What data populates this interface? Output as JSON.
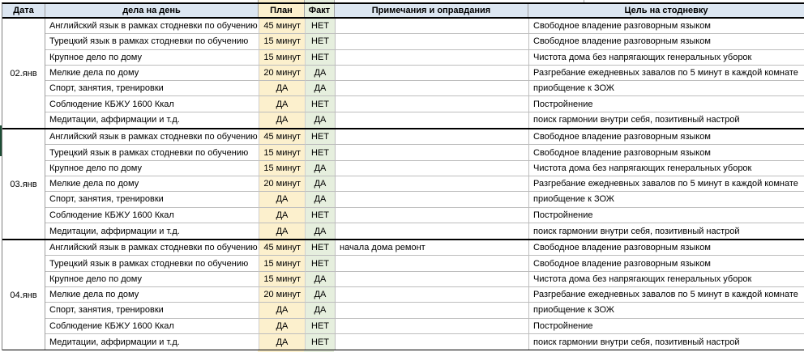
{
  "colors": {
    "header_bg": "#dce6f1",
    "plan_bg": "#fcf0cd",
    "fact_bg": "#e6efde",
    "grid_line": "#bdbdbd",
    "thick_border": "#000000",
    "edge_tick": "#1d4d35"
  },
  "table": {
    "columns": [
      {
        "key": "date",
        "label": "Дата"
      },
      {
        "key": "tasks",
        "label": "дела на день"
      },
      {
        "key": "plan",
        "label": "План"
      },
      {
        "key": "fact",
        "label": "Факт"
      },
      {
        "key": "notes",
        "label": "Примечания и оправдания"
      },
      {
        "key": "goal",
        "label": "Цель на стодневку"
      }
    ],
    "groups": [
      {
        "date": "02.янв",
        "rows": [
          {
            "task": "Английский язык в рамках стодневки по обучению",
            "plan": "45 минут",
            "fact": "НЕТ",
            "note": "",
            "goal": "Свободное владение разговорным языком"
          },
          {
            "task": "Турецкий язык в рамках стодневки по обучению",
            "plan": "15 минут",
            "fact": "НЕТ",
            "note": "",
            "goal": "Свободное владение разговорным языком"
          },
          {
            "task": "Крупное дело по дому",
            "plan": "15 минут",
            "fact": "НЕТ",
            "note": "",
            "goal": "Чистота дома без напрягающих генеральных уборок"
          },
          {
            "task": "Мелкие дела по дому",
            "plan": "20 минут",
            "fact": "ДА",
            "note": "",
            "goal": "Разгребание ежедневных завалов по 5 минут в каждой комнате"
          },
          {
            "task": "Спорт, занятия, тренировки",
            "plan": "ДА",
            "fact": "ДА",
            "note": "",
            "goal": "приобщение к ЗОЖ"
          },
          {
            "task": "Соблюдение КБЖУ 1600 Ккал",
            "plan": "ДА",
            "fact": "НЕТ",
            "note": "",
            "goal": "Постройнение"
          },
          {
            "task": "Медитации, аффирмации и т.д.",
            "plan": "ДА",
            "fact": "ДА",
            "note": "",
            "goal": "поиск гармонии внутри себя, позитивный настрой"
          }
        ]
      },
      {
        "date": "03.янв",
        "rows": [
          {
            "task": "Английский язык в рамках стодневки по обучению",
            "plan": "45 минут",
            "fact": "НЕТ",
            "note": "",
            "goal": "Свободное владение разговорным языком"
          },
          {
            "task": "Турецкий язык в рамках стодневки по обучению",
            "plan": "15 минут",
            "fact": "НЕТ",
            "note": "",
            "goal": "Свободное владение разговорным языком"
          },
          {
            "task": "Крупное дело по дому",
            "plan": "15 минут",
            "fact": "ДА",
            "note": "",
            "goal": "Чистота дома без напрягающих генеральных уборок"
          },
          {
            "task": "Мелкие дела по дому",
            "plan": "20 минут",
            "fact": "ДА",
            "note": "",
            "goal": "Разгребание ежедневных завалов по 5 минут в каждой комнате"
          },
          {
            "task": "Спорт, занятия, тренировки",
            "plan": "ДА",
            "fact": "ДА",
            "note": "",
            "goal": "приобщение к ЗОЖ"
          },
          {
            "task": "Соблюдение КБЖУ 1600 Ккал",
            "plan": "ДА",
            "fact": "НЕТ",
            "note": "",
            "goal": "Постройнение"
          },
          {
            "task": "Медитации, аффирмации и т.д.",
            "plan": "ДА",
            "fact": "ДА",
            "note": "",
            "goal": "поиск гармонии внутри себя, позитивный настрой"
          }
        ]
      },
      {
        "date": "04.янв",
        "rows": [
          {
            "task": "Английский язык в рамках стодневки по обучению",
            "plan": "45 минут",
            "fact": "НЕТ",
            "note": "начала дома ремонт",
            "goal": "Свободное владение разговорным языком"
          },
          {
            "task": "Турецкий язык в рамках стодневки по обучению",
            "plan": "15 минут",
            "fact": "НЕТ",
            "note": "",
            "goal": "Свободное владение разговорным языком"
          },
          {
            "task": "Крупное дело по дому",
            "plan": "15 минут",
            "fact": "ДА",
            "note": "",
            "goal": "Чистота дома без напрягающих генеральных уборок"
          },
          {
            "task": "Мелкие дела по дому",
            "plan": "20 минут",
            "fact": "ДА",
            "note": "",
            "goal": "Разгребание ежедневных завалов по 5 минут в каждой комнате"
          },
          {
            "task": "Спорт, занятия, тренировки",
            "plan": "ДА",
            "fact": "ДА",
            "note": "",
            "goal": "приобщение к ЗОЖ"
          },
          {
            "task": "Соблюдение КБЖУ 1600 Ккал",
            "plan": "ДА",
            "fact": "НЕТ",
            "note": "",
            "goal": "Постройнение"
          },
          {
            "task": "Медитации, аффирмации и т.д.",
            "plan": "ДА",
            "fact": "НЕТ",
            "note": "",
            "goal": "поиск гармонии внутри себя, позитивный настрой"
          }
        ]
      }
    ]
  }
}
